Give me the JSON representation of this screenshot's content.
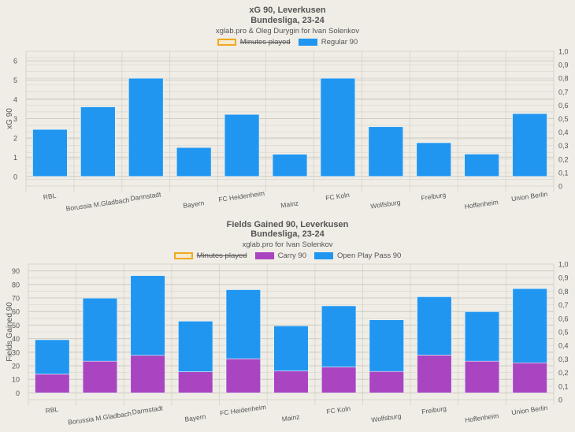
{
  "chart_data": [
    {
      "type": "bar",
      "title": "xG 90, Leverkusen",
      "subtitle": "Bundesliga, 23-24",
      "credit": "xglab.pro & Oleg Durygin for Ivan Solenkov",
      "legend": [
        {
          "label": "Minutes played",
          "color": "#f0a820",
          "hidden": true
        },
        {
          "label": "Regular 90",
          "color": "#2196f0",
          "hidden": false
        }
      ],
      "ylabel": "xG 90",
      "ylim": [
        -0.5,
        6.5
      ],
      "yticks": [
        "0",
        "1",
        "2",
        "3",
        "4",
        "5",
        "6"
      ],
      "y2lim": [
        0,
        1
      ],
      "y2ticks": [
        "0",
        "0,1",
        "0,2",
        "0,3",
        "0,4",
        "0,5",
        "0,6",
        "0,7",
        "0,8",
        "0,9",
        "1,0"
      ],
      "grid": true,
      "categories": [
        "RBL",
        "Borussia M.Gladbach",
        "Darmstadt",
        "Bayern",
        "FC Heidenheim",
        "Mainz",
        "FC Koln",
        "Wolfsburg",
        "Freiburg",
        "Hoffenheim",
        "Union Berlin"
      ],
      "series": [
        {
          "name": "Regular 90",
          "color": "#2196f0",
          "values": [
            2.44,
            3.61,
            5.1,
            1.5,
            3.22,
            1.15,
            5.1,
            2.58,
            1.75,
            1.16,
            3.26
          ]
        }
      ]
    },
    {
      "type": "bar",
      "stacked": true,
      "title": "Fields Gained 90, Leverkusen",
      "subtitle": "Bundesliga, 23-24",
      "credit": "xglab.pro for Ivan Solenkov",
      "legend": [
        {
          "label": "Minutes played",
          "color": "#f0a820",
          "hidden": true
        },
        {
          "label": "Carry 90",
          "color": "#a945c0",
          "hidden": false
        },
        {
          "label": "Open Play Pass 90",
          "color": "#2196f0",
          "hidden": false
        }
      ],
      "ylabel": "Fields Gained 90",
      "ylim": [
        -5,
        95
      ],
      "yticks": [
        "0",
        "10",
        "20",
        "30",
        "40",
        "50",
        "60",
        "70",
        "80",
        "90"
      ],
      "y2lim": [
        0,
        1
      ],
      "y2ticks": [
        "0",
        "0,1",
        "0,2",
        "0,3",
        "0,4",
        "0,5",
        "0,6",
        "0,7",
        "0,8",
        "0,9",
        "1,0"
      ],
      "grid": true,
      "categories": [
        "RBL",
        "Borussia M.Gladbach",
        "Darmstadt",
        "Bayern",
        "FC Heidenheim",
        "Mainz",
        "FC Koln",
        "Wolfsburg",
        "Freiburg",
        "Hoffenheim",
        "Union Berlin"
      ],
      "series": [
        {
          "name": "Carry 90",
          "color": "#a945c0",
          "values": [
            13.9,
            23.4,
            27.7,
            15.6,
            25.2,
            16.2,
            19.1,
            15.8,
            27.9,
            23.4,
            22.2
          ]
        },
        {
          "name": "Open Play Pass 90",
          "color": "#2196f0",
          "values": [
            25.3,
            46.5,
            58.8,
            37.3,
            50.9,
            33.2,
            45.1,
            38.1,
            43.0,
            36.5,
            54.7
          ]
        }
      ]
    }
  ]
}
